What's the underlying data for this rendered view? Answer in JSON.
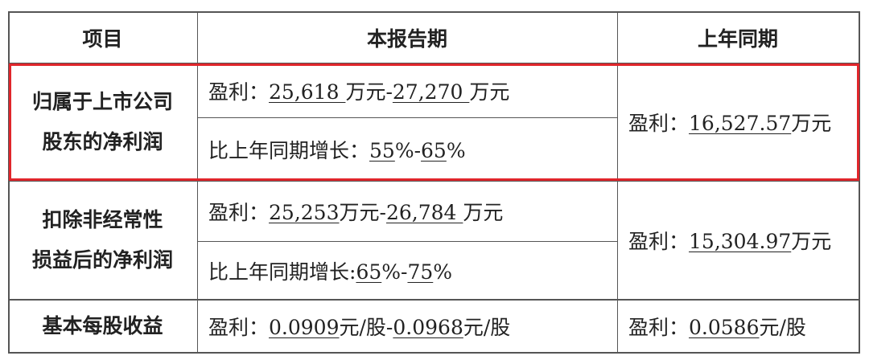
{
  "header": {
    "col1": "项目",
    "col2": "本报告期",
    "col3": "上年同期"
  },
  "highlight_color": "#e0262b",
  "rows": [
    {
      "label_line1": "归属于上市公司",
      "label_line2": "股东的净利润",
      "current_a": [
        {
          "t": "盈利："
        },
        {
          "t": "25,618 ",
          "u": true
        },
        {
          "t": "万元-"
        },
        {
          "t": "27,270 ",
          "u": true
        },
        {
          "t": "万元"
        }
      ],
      "current_b": [
        {
          "t": "比上年同期增长："
        },
        {
          "t": "55",
          "u": true
        },
        {
          "t": "%-"
        },
        {
          "t": "65",
          "u": true
        },
        {
          "t": "%"
        }
      ],
      "prior": [
        {
          "t": "盈利："
        },
        {
          "t": "16,527.57",
          "u": true
        },
        {
          "t": "万元"
        }
      ]
    },
    {
      "label_line1": "扣除非经常性",
      "label_line2": "损益后的净利润",
      "current_a": [
        {
          "t": "盈利："
        },
        {
          "t": "25,253",
          "u": true
        },
        {
          "t": "万元-"
        },
        {
          "t": "26,784 ",
          "u": true
        },
        {
          "t": "万元"
        }
      ],
      "current_b": [
        {
          "t": "比上年同期增长:"
        },
        {
          "t": "65",
          "u": true
        },
        {
          "t": "%-"
        },
        {
          "t": "75",
          "u": true
        },
        {
          "t": "%"
        }
      ],
      "prior": [
        {
          "t": "盈利："
        },
        {
          "t": "15,304.97",
          "u": true
        },
        {
          "t": "万元"
        }
      ]
    },
    {
      "label_line1": "基本每股收益",
      "current_a": [
        {
          "t": "盈利："
        },
        {
          "t": "0.0909",
          "u": true
        },
        {
          "t": "元/股-"
        },
        {
          "t": "0.0968",
          "u": true
        },
        {
          "t": "元/股"
        }
      ],
      "prior": [
        {
          "t": "盈利："
        },
        {
          "t": "0.0586",
          "u": true
        },
        {
          "t": "元/股"
        }
      ]
    }
  ]
}
